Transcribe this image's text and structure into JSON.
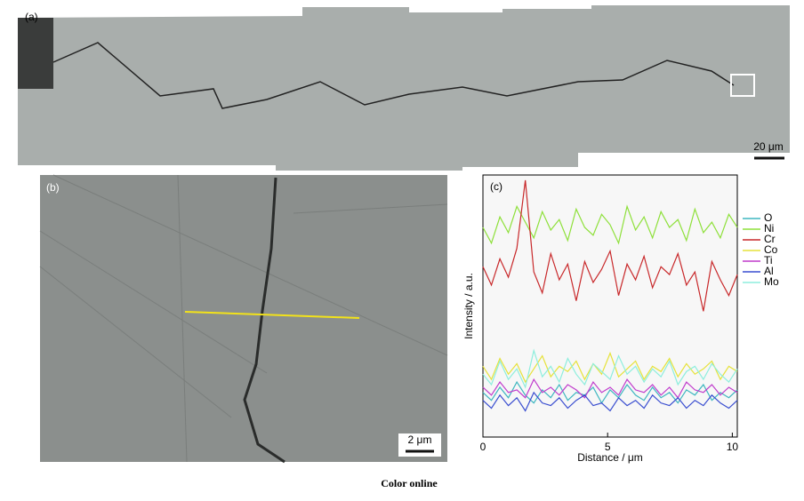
{
  "panel_a": {
    "label": "(a)",
    "scale_bar": "20 μm"
  },
  "panel_b": {
    "label": "(b)",
    "scale_bar": "2 μm"
  },
  "chart_data": {
    "type": "line",
    "panel_label": "(c)",
    "x_label": "Distance / μm",
    "y_label": "Intensity / a.u.",
    "xlim": [
      0,
      10.2
    ],
    "xticks": [
      0,
      5,
      10
    ],
    "ylim": [
      0,
      100
    ],
    "legend": "right",
    "x": [
      0,
      0.34,
      0.68,
      1.02,
      1.36,
      1.7,
      2.04,
      2.38,
      2.72,
      3.06,
      3.4,
      3.74,
      4.08,
      4.42,
      4.76,
      5.1,
      5.44,
      5.78,
      6.12,
      6.46,
      6.8,
      7.14,
      7.48,
      7.82,
      8.16,
      8.5,
      8.84,
      9.18,
      9.52,
      9.86,
      10.2
    ],
    "series": [
      {
        "name": "O",
        "color": "#3fb7c0",
        "values": [
          17,
          14,
          19,
          15,
          21,
          16,
          13,
          18,
          15,
          20,
          14,
          17,
          16,
          19,
          13,
          18,
          15,
          20,
          16,
          14,
          19,
          15,
          17,
          13,
          18,
          16,
          20,
          14,
          17,
          15,
          18
        ]
      },
      {
        "name": "Ni",
        "color": "#8ee03a",
        "values": [
          80,
          74,
          84,
          78,
          88,
          82,
          76,
          86,
          79,
          83,
          75,
          87,
          80,
          77,
          85,
          81,
          74,
          88,
          79,
          84,
          76,
          86,
          80,
          83,
          75,
          87,
          78,
          82,
          76,
          85,
          80
        ]
      },
      {
        "name": "Cr",
        "color": "#c8282a",
        "values": [
          65,
          58,
          68,
          61,
          72,
          98,
          63,
          55,
          70,
          60,
          66,
          52,
          67,
          59,
          64,
          71,
          54,
          66,
          60,
          69,
          57,
          65,
          62,
          70,
          58,
          63,
          48,
          67,
          60,
          54,
          62
        ]
      },
      {
        "name": "Co",
        "color": "#e6e23a",
        "values": [
          27,
          22,
          30,
          24,
          28,
          21,
          26,
          31,
          23,
          27,
          25,
          29,
          22,
          28,
          24,
          32,
          23,
          26,
          29,
          22,
          27,
          25,
          30,
          23,
          28,
          24,
          26,
          29,
          22,
          27,
          25
        ]
      },
      {
        "name": "Ti",
        "color": "#c03ccc",
        "values": [
          19,
          16,
          21,
          17,
          18,
          15,
          22,
          17,
          19,
          16,
          20,
          18,
          15,
          21,
          17,
          19,
          16,
          22,
          18,
          17,
          20,
          16,
          19,
          15,
          21,
          18,
          17,
          20,
          16,
          19,
          17
        ]
      },
      {
        "name": "Al",
        "color": "#3a4ed0",
        "values": [
          14,
          11,
          16,
          12,
          15,
          10,
          17,
          13,
          12,
          15,
          11,
          14,
          16,
          12,
          13,
          10,
          15,
          12,
          14,
          11,
          16,
          13,
          12,
          15,
          11,
          14,
          12,
          16,
          13,
          11,
          14
        ]
      },
      {
        "name": "Mo",
        "color": "#8deedd",
        "values": [
          24,
          20,
          29,
          22,
          26,
          19,
          33,
          23,
          27,
          21,
          30,
          24,
          20,
          28,
          25,
          22,
          31,
          24,
          27,
          21,
          26,
          23,
          29,
          20,
          25,
          27,
          22,
          28,
          24,
          21,
          26
        ]
      }
    ]
  },
  "caption": "Color online"
}
